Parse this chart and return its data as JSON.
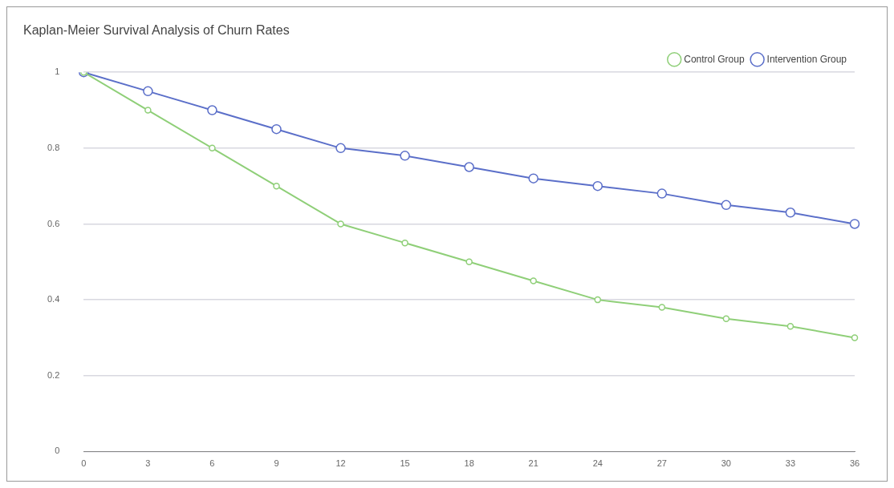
{
  "chart_data": {
    "type": "line",
    "title": "Kaplan-Meier Survival Analysis of Churn Rates",
    "categories": [
      "0",
      "3",
      "6",
      "9",
      "12",
      "15",
      "18",
      "21",
      "24",
      "27",
      "30",
      "33",
      "36"
    ],
    "series": [
      {
        "name": "Intervention Group",
        "color": "#5b6fc9",
        "values": [
          1,
          0.95,
          0.9,
          0.85,
          0.8,
          0.78,
          0.75,
          0.72,
          0.7,
          0.68,
          0.65,
          0.63,
          0.6
        ]
      },
      {
        "name": "Control Group",
        "color": "#8fcf78",
        "values": [
          1,
          0.9,
          0.8,
          0.7,
          0.6,
          0.55,
          0.5,
          0.45,
          0.4,
          0.38,
          0.35,
          0.33,
          0.3
        ]
      }
    ],
    "ylim": [
      0,
      1
    ],
    "yticks": [
      0,
      0.2,
      0.4,
      0.6,
      0.8,
      1
    ],
    "grid": "y",
    "legend": "top right",
    "marker": "circle",
    "line_style": "solid"
  }
}
